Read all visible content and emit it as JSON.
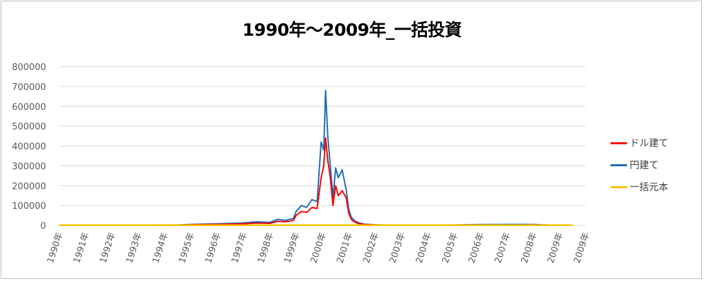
{
  "chart_data": {
    "type": "line",
    "title": "1990年～2009年_一括投資",
    "xlabel": "",
    "ylabel": "",
    "ylim": [
      0,
      800000
    ],
    "y_ticks": [
      "0",
      "100000",
      "200000",
      "300000",
      "400000",
      "500000",
      "600000",
      "700000",
      "800000"
    ],
    "x_tick_labels": [
      "1990年",
      "1991年",
      "1992年",
      "1993年",
      "1994年",
      "1995年",
      "1996年",
      "1997年",
      "1998年",
      "1999年",
      "2000年",
      "2001年",
      "2002年",
      "2003年",
      "2004年",
      "2005年",
      "2006年",
      "2007年",
      "2008年",
      "2009年",
      "2009年"
    ],
    "grid": true,
    "legend_position": "right",
    "x": [
      1990.0,
      1994.5,
      1995.0,
      1996.0,
      1997.0,
      1997.5,
      1998.0,
      1998.3,
      1998.6,
      1998.9,
      1999.0,
      1999.2,
      1999.4,
      1999.6,
      1999.8,
      1999.95,
      2000.05,
      2000.12,
      2000.2,
      2000.3,
      2000.4,
      2000.5,
      2000.6,
      2000.75,
      2000.9,
      2001.0,
      2001.1,
      2001.25,
      2001.4,
      2001.6,
      2002.0,
      2002.5,
      2003.0,
      2003.5,
      2004.0,
      2005.0,
      2006.0,
      2007.0,
      2008.0,
      2008.3,
      2008.9,
      2009.5
    ],
    "series": [
      {
        "name": "ドル建て",
        "color": "#ff0000",
        "values": [
          0,
          1000,
          3000,
          5000,
          8000,
          12000,
          10000,
          20000,
          18000,
          25000,
          50000,
          70000,
          65000,
          90000,
          85000,
          240000,
          300000,
          440000,
          330000,
          240000,
          100000,
          200000,
          150000,
          175000,
          140000,
          60000,
          30000,
          15000,
          8000,
          4000,
          2000,
          1000,
          500,
          400,
          400,
          600,
          900,
          1000,
          1000,
          800,
          500,
          500
        ]
      },
      {
        "name": "円建て",
        "color": "#1f6db5",
        "values": [
          0,
          2000,
          5000,
          8000,
          12000,
          18000,
          15000,
          30000,
          25000,
          35000,
          70000,
          100000,
          90000,
          130000,
          120000,
          420000,
          380000,
          680000,
          450000,
          300000,
          140000,
          290000,
          240000,
          280000,
          180000,
          80000,
          40000,
          20000,
          12000,
          6000,
          3000,
          1500,
          800,
          700,
          700,
          2000,
          4000,
          5000,
          5000,
          3000,
          800,
          600
        ]
      },
      {
        "name": "一括元本",
        "color": "#ffc000",
        "values": [
          1000,
          1000,
          1000,
          1000,
          1000,
          1000,
          1000,
          1000,
          1000,
          1000,
          1000,
          1000,
          1000,
          1000,
          1000,
          1000,
          1000,
          1000,
          1000,
          1000,
          1000,
          1000,
          1000,
          1000,
          1000,
          1000,
          1000,
          1000,
          1000,
          1000,
          1000,
          1000,
          1000,
          1000,
          1000,
          1000,
          1000,
          1000,
          1000,
          1000,
          1000,
          1000
        ]
      }
    ]
  }
}
